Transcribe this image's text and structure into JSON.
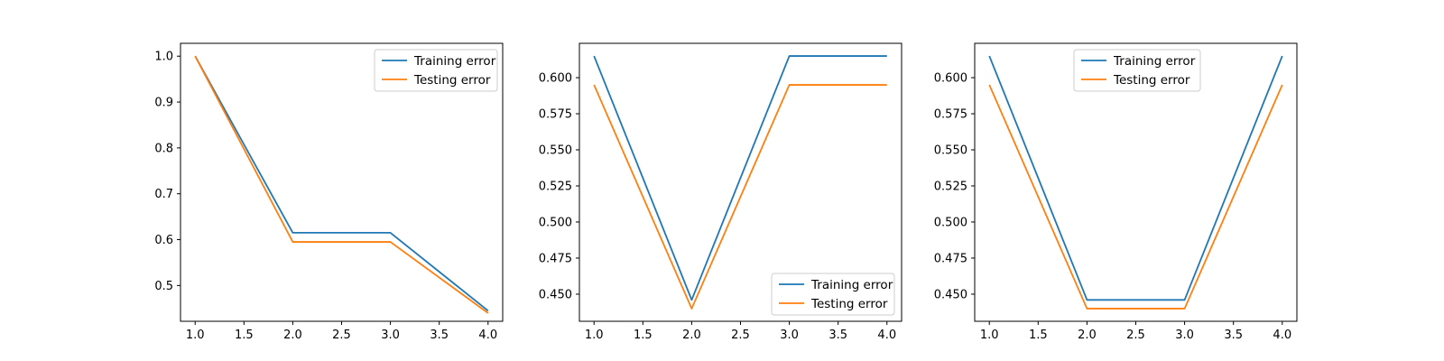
{
  "chart_data": [
    {
      "type": "line",
      "x": [
        1.0,
        2.0,
        3.0,
        4.0
      ],
      "series": [
        {
          "name": "Training error",
          "color": "#1f77b4",
          "values": [
            1.0,
            0.615,
            0.615,
            0.445
          ]
        },
        {
          "name": "Testing error",
          "color": "#ff7f0e",
          "values": [
            1.0,
            0.595,
            0.595,
            0.44
          ]
        }
      ],
      "xlim": [
        0.85,
        4.15
      ],
      "ylim": [
        0.422,
        1.028
      ],
      "xticks": [
        "1.0",
        "1.5",
        "2.0",
        "2.5",
        "3.0",
        "3.5",
        "4.0"
      ],
      "yticks": [
        "0.5",
        "0.6",
        "0.7",
        "0.8",
        "0.9",
        "1.0"
      ],
      "legend_position": "top-right",
      "grid": false
    },
    {
      "type": "line",
      "x": [
        1.0,
        2.0,
        3.0,
        4.0
      ],
      "series": [
        {
          "name": "Training error",
          "color": "#1f77b4",
          "values": [
            0.615,
            0.446,
            0.615,
            0.615
          ]
        },
        {
          "name": "Testing error",
          "color": "#ff7f0e",
          "values": [
            0.595,
            0.44,
            0.595,
            0.595
          ]
        }
      ],
      "xlim": [
        0.85,
        4.15
      ],
      "ylim": [
        0.4312,
        0.6238
      ],
      "xticks": [
        "1.0",
        "1.5",
        "2.0",
        "2.5",
        "3.0",
        "3.5",
        "4.0"
      ],
      "yticks": [
        "0.450",
        "0.475",
        "0.500",
        "0.525",
        "0.550",
        "0.575",
        "0.600"
      ],
      "legend_position": "bottom-right",
      "grid": false
    },
    {
      "type": "line",
      "x": [
        1.0,
        2.0,
        3.0,
        4.0
      ],
      "series": [
        {
          "name": "Training error",
          "color": "#1f77b4",
          "values": [
            0.615,
            0.446,
            0.446,
            0.615
          ]
        },
        {
          "name": "Testing error",
          "color": "#ff7f0e",
          "values": [
            0.595,
            0.44,
            0.44,
            0.595
          ]
        }
      ],
      "xlim": [
        0.85,
        4.15
      ],
      "ylim": [
        0.4312,
        0.6238
      ],
      "xticks": [
        "1.0",
        "1.5",
        "2.0",
        "2.5",
        "3.0",
        "3.5",
        "4.0"
      ],
      "yticks": [
        "0.450",
        "0.475",
        "0.500",
        "0.525",
        "0.550",
        "0.575",
        "0.600"
      ],
      "legend_position": "top-center",
      "grid": false
    }
  ]
}
